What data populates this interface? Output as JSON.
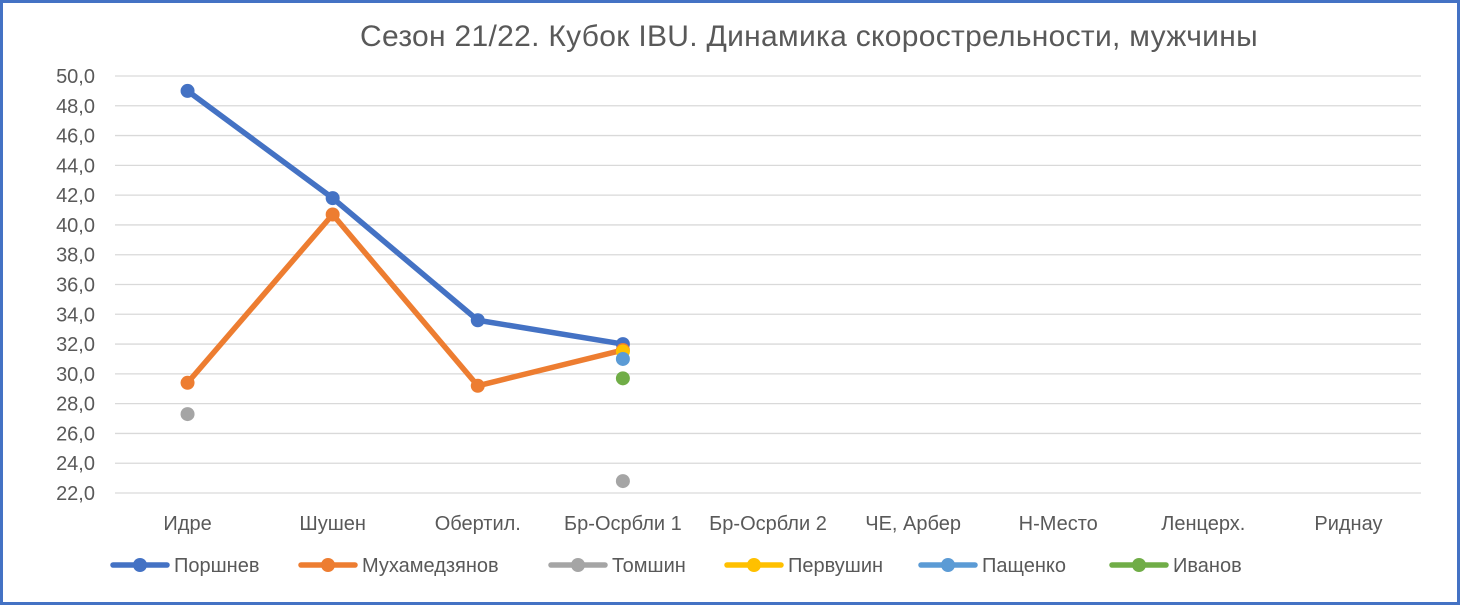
{
  "chart_data": {
    "type": "line",
    "title": "Сезон 21/22. Кубок IBU. Динамика скорострельности,  мужчины",
    "xlabel": "",
    "ylabel": "",
    "categories": [
      "Идре",
      "Шушен",
      "Обертил.",
      "Бр-Осрбли 1",
      "Бр-Осрбли 2",
      "ЧЕ, Арбер",
      "Н-Место",
      "Ленцерх.",
      "Риднау"
    ],
    "ylim": [
      22,
      50
    ],
    "ytick_step": 2,
    "ytick_labels": [
      "22,0",
      "24,0",
      "26,0",
      "28,0",
      "30,0",
      "32,0",
      "34,0",
      "36,0",
      "38,0",
      "40,0",
      "42,0",
      "44,0",
      "46,0",
      "48,0",
      "50,0"
    ],
    "grid": true,
    "legend_position": "bottom",
    "series": [
      {
        "name": "Поршнев",
        "color": "#4472c4",
        "values": [
          49.0,
          41.8,
          33.6,
          32.0,
          null,
          null,
          null,
          null,
          null
        ]
      },
      {
        "name": "Мухамедзянов",
        "color": "#ed7d31",
        "values": [
          29.4,
          40.7,
          29.2,
          31.6,
          null,
          null,
          null,
          null,
          null
        ]
      },
      {
        "name": "Томшин",
        "color": "#a5a5a5",
        "values": [
          27.3,
          null,
          null,
          22.8,
          null,
          null,
          null,
          null,
          null
        ]
      },
      {
        "name": "Первушин",
        "color": "#ffc000",
        "values": [
          null,
          null,
          null,
          31.5,
          null,
          null,
          null,
          null,
          null
        ]
      },
      {
        "name": "Пащенко",
        "color": "#5b9bd5",
        "values": [
          null,
          null,
          null,
          31.0,
          null,
          null,
          null,
          null,
          null
        ]
      },
      {
        "name": "Иванов",
        "color": "#70ad47",
        "values": [
          null,
          null,
          null,
          29.7,
          null,
          null,
          null,
          null,
          null
        ]
      }
    ]
  }
}
